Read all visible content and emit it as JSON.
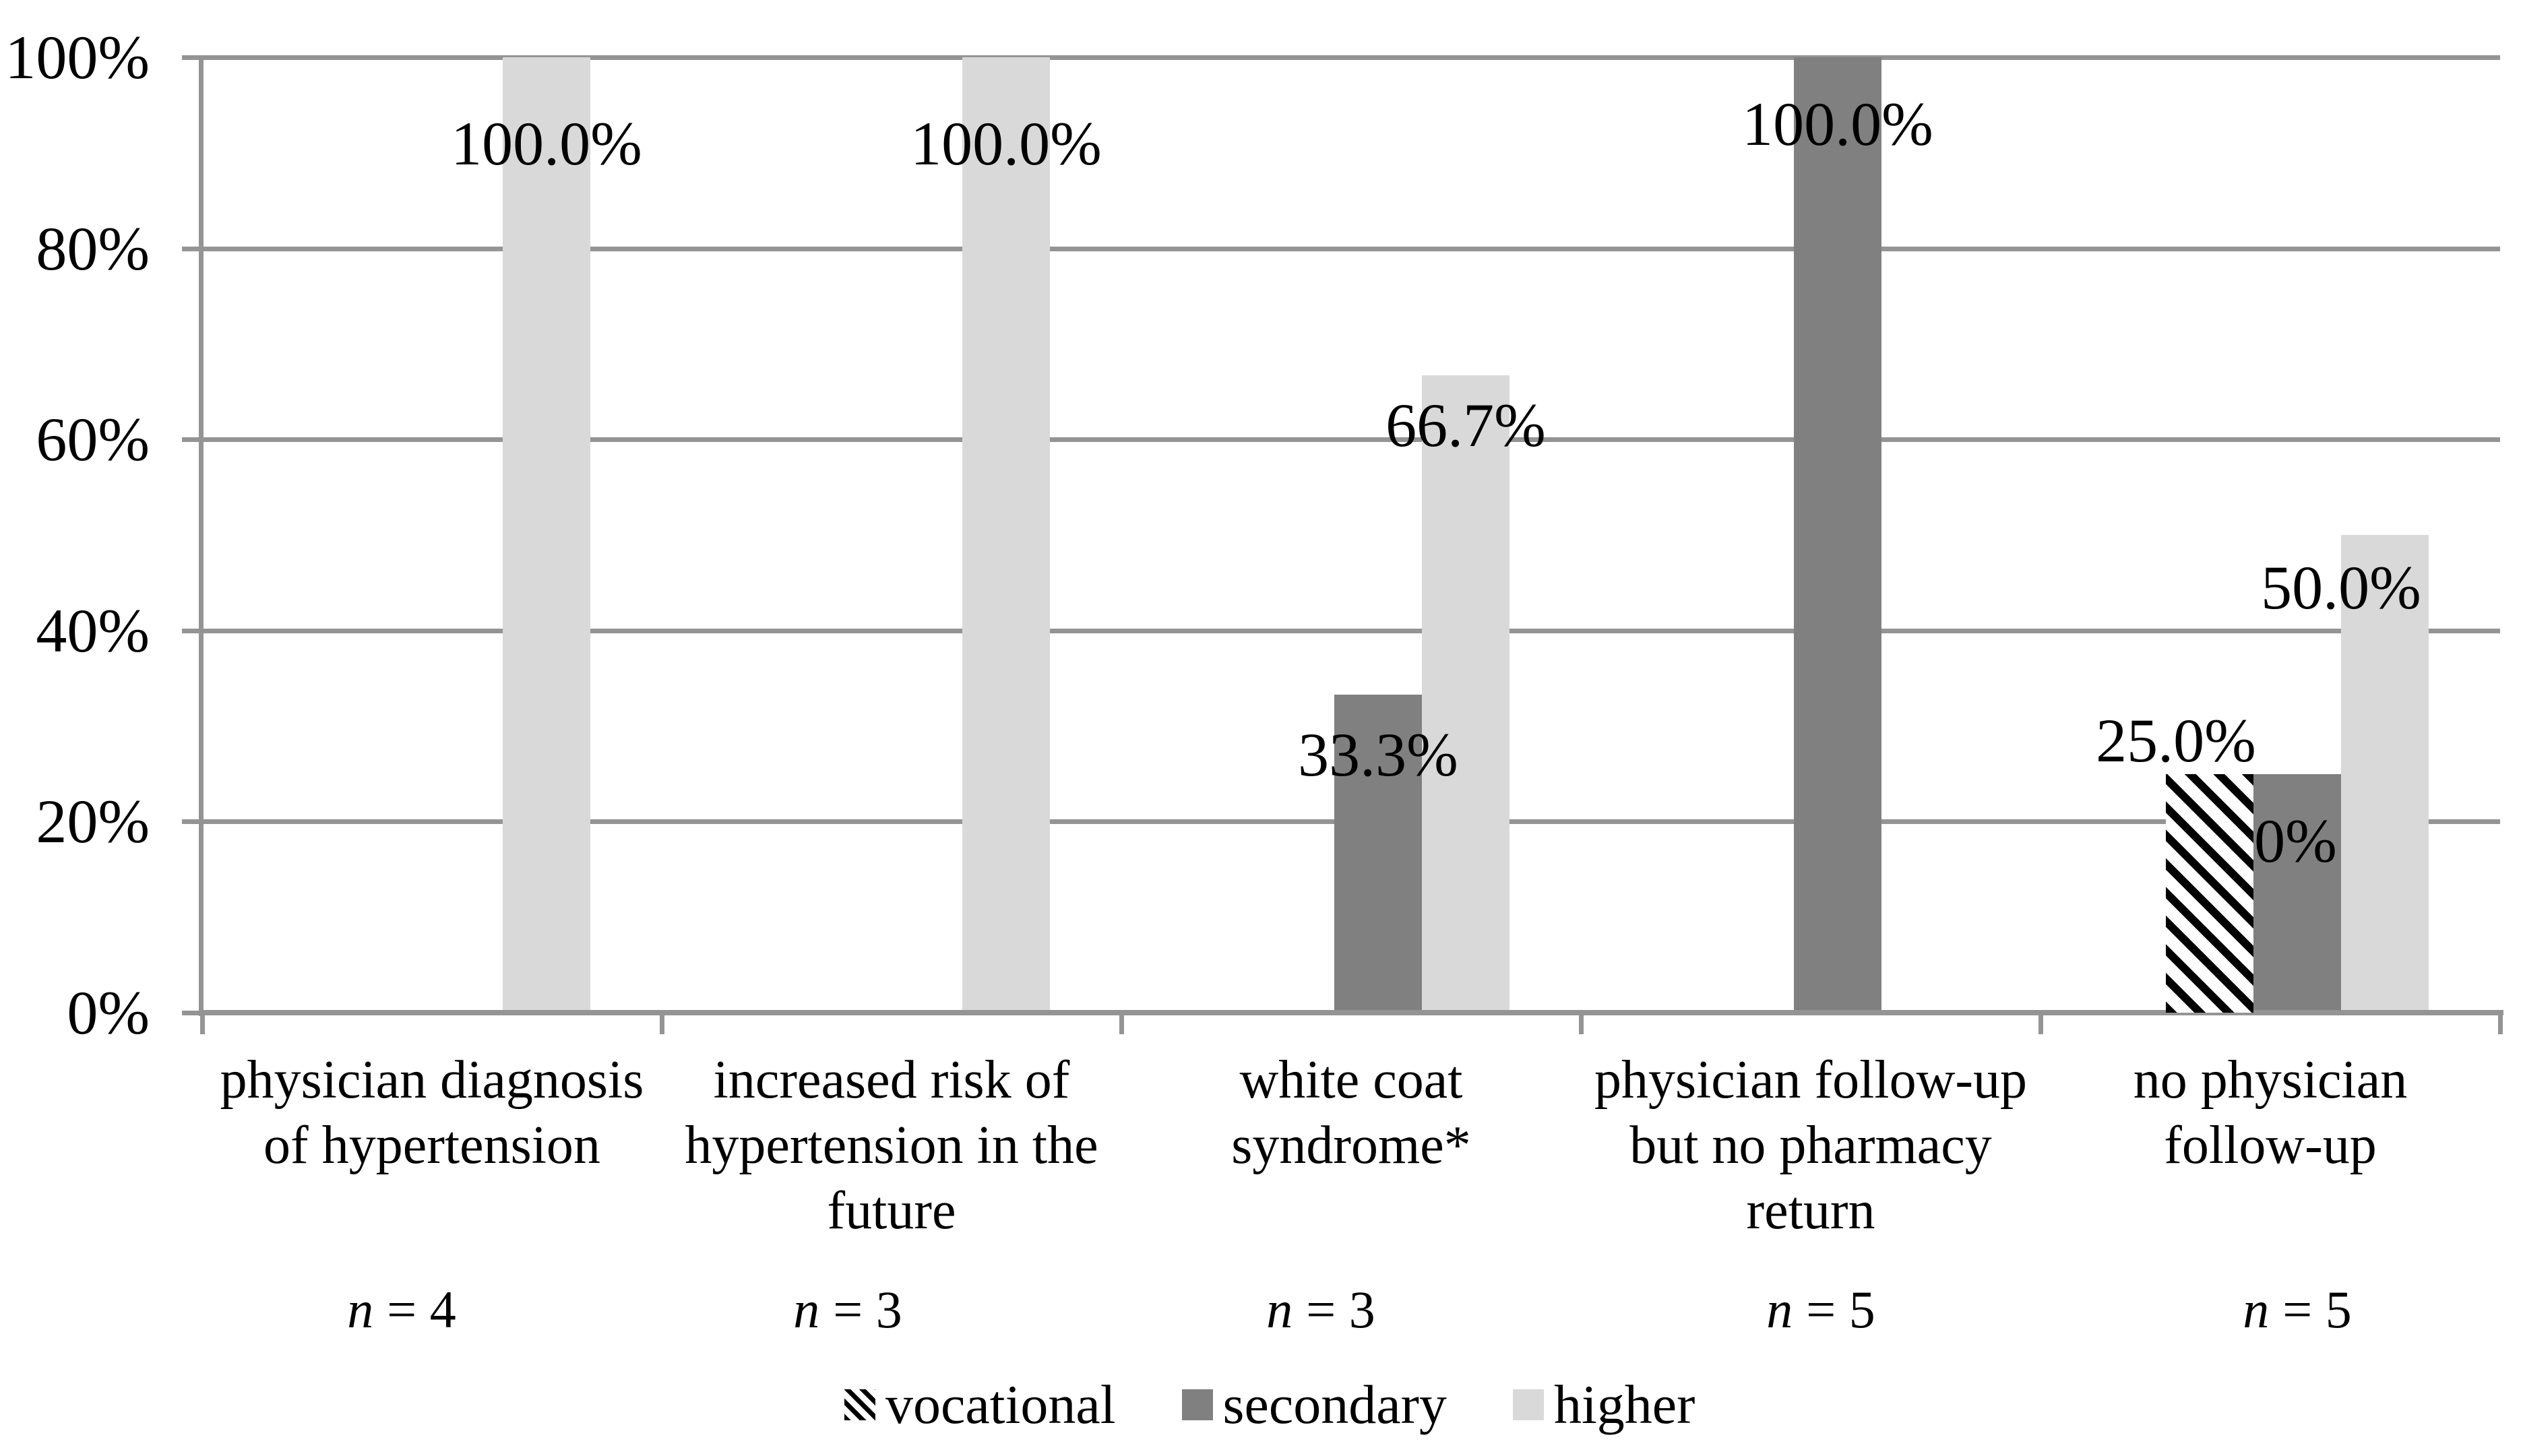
{
  "chart_data": {
    "type": "bar",
    "title": "",
    "xlabel": "",
    "ylabel": "",
    "ylim": [
      0,
      100
    ],
    "grid": true,
    "legend_position": "bottom",
    "y_ticks": [
      "0%",
      "20%",
      "40%",
      "60%",
      "80%",
      "100%"
    ],
    "categories": [
      "physician diagnosis of hypertension",
      "increased risk of hypertension in the future",
      "white coat syndrome*",
      "physician follow-up but no pharmacy return",
      "no physician follow-up"
    ],
    "category_lines": [
      [
        "physician diagnosis",
        "of hypertension"
      ],
      [
        "increased risk of",
        "hypertension in the",
        "future"
      ],
      [
        "white coat",
        "syndrome*"
      ],
      [
        "physician follow-up",
        "but no pharmacy",
        "return"
      ],
      [
        "no physician",
        "follow-up"
      ]
    ],
    "n_labels": [
      {
        "var": "n",
        "eq": "= 4"
      },
      {
        "var": "n",
        "eq": "= 3"
      },
      {
        "var": "n",
        "eq": "= 3"
      },
      {
        "var": "n",
        "eq": "= 5"
      },
      {
        "var": "n",
        "eq": "= 5"
      }
    ],
    "series": [
      {
        "name": "vocational",
        "pattern": "black-diagonal-hatch-on-white",
        "values": [
          null,
          null,
          null,
          null,
          25.0
        ],
        "labels": [
          null,
          null,
          null,
          null,
          "25.0%"
        ]
      },
      {
        "name": "secondary",
        "color": "#808080",
        "values": [
          null,
          null,
          33.3,
          100.0,
          25.0
        ],
        "labels": [
          null,
          null,
          "33.3%",
          "100.0%",
          "25.0%"
        ]
      },
      {
        "name": "higher",
        "color": "#D9D9D9",
        "values": [
          100.0,
          100.0,
          66.7,
          null,
          50.0
        ],
        "labels": [
          "100.0%",
          "100.0%",
          "66.7%",
          null,
          "50.0%"
        ]
      }
    ]
  },
  "colors": {
    "secondary_bar": "#808080",
    "higher_bar": "#D9D9D9",
    "hatch_foreground": "#000000",
    "hatch_background": "#FFFFFF",
    "grid_and_axis": "#949494",
    "text": "#000000",
    "background": "#FFFFFF"
  }
}
